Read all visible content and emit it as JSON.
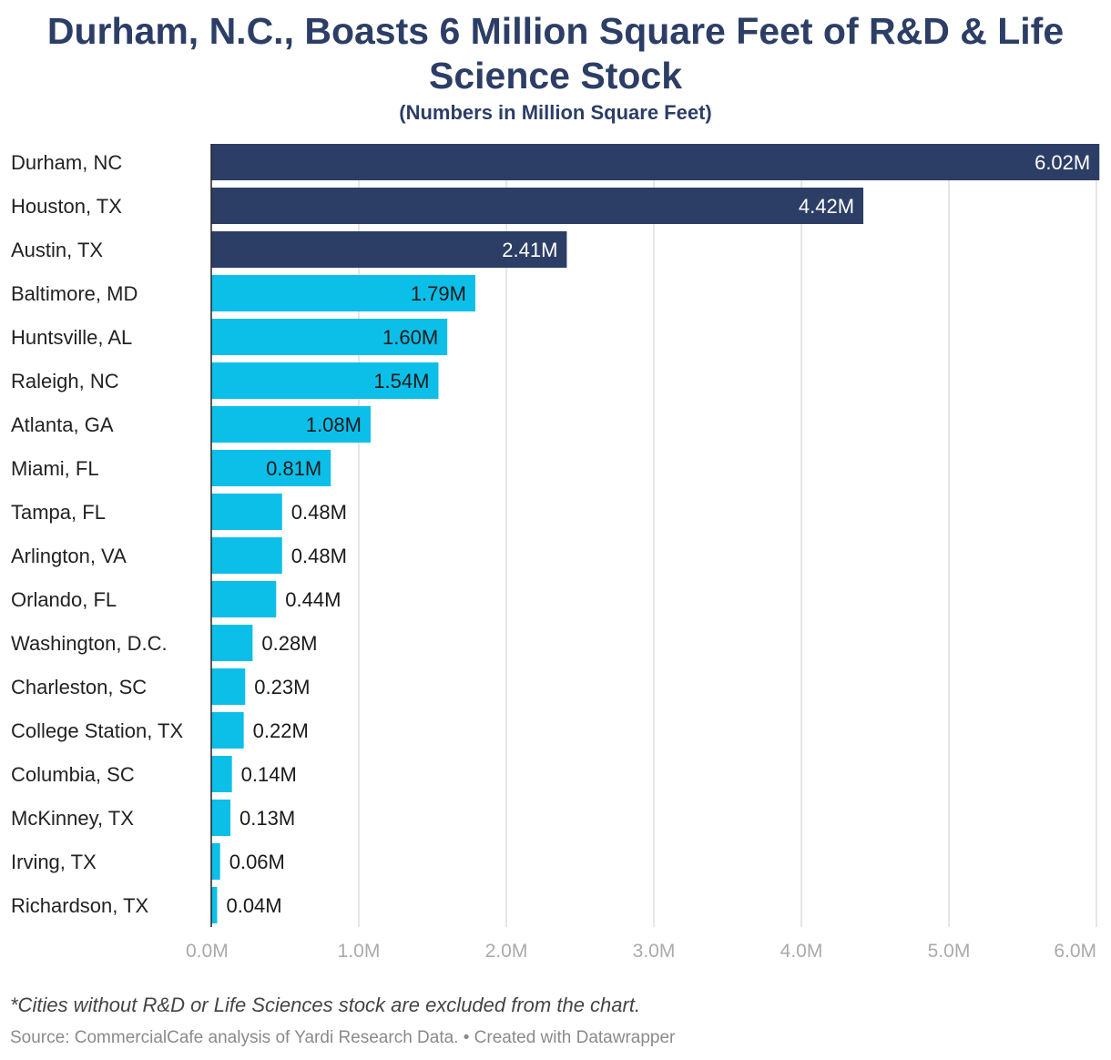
{
  "title_lines": [
    "Durham, N.C., Boasts 6 Million Square Feet of R&D & Life",
    "Science Stock"
  ],
  "subtitle": "(Numbers in Million Square Feet)",
  "footnote": "*Cities without R&D or Life Sciences stock are excluded from the chart.",
  "source": "Source: CommercialCafe analysis of Yardi Research Data. • Created with Datawrapper",
  "colors": {
    "highlight": "#2c3e66",
    "default": "#0cbfe9",
    "grid": "#dddddd",
    "tick_text": "#aaaaaa"
  },
  "chart_data": {
    "type": "bar",
    "orientation": "horizontal",
    "categories": [
      "Durham, NC",
      "Houston, TX",
      "Austin, TX",
      "Baltimore, MD",
      "Huntsville, AL",
      "Raleigh, NC",
      "Atlanta, GA",
      "Miami, FL",
      "Tampa, FL",
      "Arlington, VA",
      "Orlando, FL",
      "Washington, D.C.",
      "Charleston, SC",
      "College Station, TX",
      "Columbia, SC",
      "McKinney, TX",
      "Irving, TX",
      "Richardson, TX"
    ],
    "values": [
      6.02,
      4.42,
      2.41,
      1.79,
      1.6,
      1.54,
      1.08,
      0.81,
      0.48,
      0.48,
      0.44,
      0.28,
      0.23,
      0.22,
      0.14,
      0.13,
      0.06,
      0.04
    ],
    "value_labels": [
      "6.02M",
      "4.42M",
      "2.41M",
      "1.79M",
      "1.60M",
      "1.54M",
      "1.08M",
      "0.81M",
      "0.48M",
      "0.48M",
      "0.44M",
      "0.28M",
      "0.23M",
      "0.22M",
      "0.14M",
      "0.13M",
      "0.06M",
      "0.04M"
    ],
    "highlighted": [
      true,
      true,
      true,
      false,
      false,
      false,
      false,
      false,
      false,
      false,
      false,
      false,
      false,
      false,
      false,
      false,
      false,
      false
    ],
    "xlim": [
      0,
      6
    ],
    "xticks": [
      0,
      1,
      2,
      3,
      4,
      5,
      6
    ],
    "xtick_labels": [
      "0.0M",
      "1.0M",
      "2.0M",
      "3.0M",
      "4.0M",
      "5.0M",
      "6.0M"
    ],
    "grid": true
  }
}
